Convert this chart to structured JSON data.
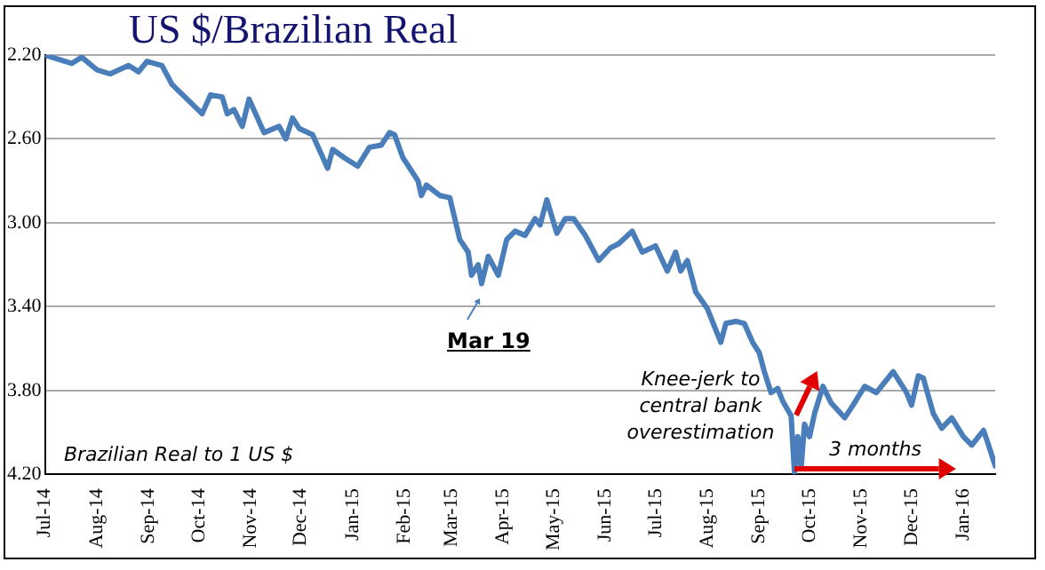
{
  "chart_data": {
    "type": "line",
    "title": "US $/Brazilian Real",
    "x": [
      "2014-07-01",
      "2014-07-17",
      "2014-07-23",
      "2014-08-01",
      "2014-08-09",
      "2014-08-20",
      "2014-08-26",
      "2014-08-31",
      "2014-09-09",
      "2014-09-15",
      "2014-09-24",
      "2014-10-03",
      "2014-10-08",
      "2014-10-15",
      "2014-10-18",
      "2014-10-22",
      "2014-10-27",
      "2014-10-31",
      "2014-11-09",
      "2014-11-18",
      "2014-11-22",
      "2014-11-26",
      "2014-11-30",
      "2014-12-08",
      "2014-12-17",
      "2014-12-20",
      "2014-12-27",
      "2015-01-04",
      "2015-01-11",
      "2015-01-18",
      "2015-01-23",
      "2015-01-26",
      "2015-01-31",
      "2015-02-09",
      "2015-02-11",
      "2015-02-14",
      "2015-02-22",
      "2015-02-28",
      "2015-03-06",
      "2015-03-11",
      "2015-03-13",
      "2015-03-17",
      "2015-03-19",
      "2015-03-23",
      "2015-03-29",
      "2015-04-03",
      "2015-04-08",
      "2015-04-14",
      "2015-04-20",
      "2015-04-23",
      "2015-04-27",
      "2015-05-03",
      "2015-05-08",
      "2015-05-13",
      "2015-05-20",
      "2015-05-28",
      "2015-06-04",
      "2015-06-09",
      "2015-06-17",
      "2015-06-23",
      "2015-07-01",
      "2015-07-08",
      "2015-07-13",
      "2015-07-16",
      "2015-07-20",
      "2015-07-25",
      "2015-08-01",
      "2015-08-09",
      "2015-08-12",
      "2015-08-18",
      "2015-08-23",
      "2015-08-28",
      "2015-09-01",
      "2015-09-04",
      "2015-09-08",
      "2015-09-12",
      "2015-09-15",
      "2015-09-20",
      "2015-09-22",
      "2015-09-24",
      "2015-09-26",
      "2015-09-28",
      "2015-10-01",
      "2015-10-04",
      "2015-10-09",
      "2015-10-14",
      "2015-10-22",
      "2015-10-27",
      "2015-11-03",
      "2015-11-10",
      "2015-11-20",
      "2015-11-28",
      "2015-12-01",
      "2015-12-05",
      "2015-12-08",
      "2015-12-14",
      "2015-12-19",
      "2015-12-25",
      "2016-01-01",
      "2016-01-06",
      "2016-01-13",
      "2016-01-16",
      "2016-01-20"
    ],
    "series": [
      {
        "color": "#4a7ebb",
        "values": [
          2.2,
          2.24,
          2.21,
          2.27,
          2.29,
          2.25,
          2.28,
          2.23,
          2.25,
          2.34,
          2.41,
          2.48,
          2.39,
          2.4,
          2.48,
          2.46,
          2.54,
          2.41,
          2.57,
          2.54,
          2.6,
          2.5,
          2.55,
          2.58,
          2.74,
          2.65,
          2.69,
          2.73,
          2.64,
          2.63,
          2.57,
          2.58,
          2.69,
          2.8,
          2.87,
          2.82,
          2.87,
          2.88,
          3.08,
          3.14,
          3.25,
          3.2,
          3.29,
          3.16,
          3.25,
          3.08,
          3.04,
          3.06,
          2.98,
          3.01,
          2.89,
          3.05,
          2.98,
          2.98,
          3.06,
          3.18,
          3.12,
          3.1,
          3.04,
          3.14,
          3.11,
          3.23,
          3.14,
          3.23,
          3.18,
          3.33,
          3.41,
          3.57,
          3.48,
          3.47,
          3.48,
          3.57,
          3.62,
          3.71,
          3.81,
          3.79,
          3.85,
          3.92,
          4.19,
          4.02,
          4.17,
          3.96,
          4.02,
          3.91,
          3.78,
          3.86,
          3.93,
          3.87,
          3.78,
          3.81,
          3.71,
          3.81,
          3.87,
          3.73,
          3.74,
          3.91,
          3.98,
          3.93,
          4.02,
          4.06,
          3.99,
          4.06,
          4.16
        ]
      }
    ],
    "xlim": [
      "2014-07-01",
      "2016-01-20"
    ],
    "xticks": [
      {
        "value": "2014-07-01",
        "label": "Jul-14"
      },
      {
        "value": "2014-08-01",
        "label": "Aug-14"
      },
      {
        "value": "2014-09-01",
        "label": "Sep-14"
      },
      {
        "value": "2014-10-01",
        "label": "Oct-14"
      },
      {
        "value": "2014-11-01",
        "label": "Nov-14"
      },
      {
        "value": "2014-12-01",
        "label": "Dec-14"
      },
      {
        "value": "2015-01-01",
        "label": "Jan-15"
      },
      {
        "value": "2015-02-01",
        "label": "Feb-15"
      },
      {
        "value": "2015-03-01",
        "label": "Mar-15"
      },
      {
        "value": "2015-04-01",
        "label": "Apr-15"
      },
      {
        "value": "2015-05-01",
        "label": "May-15"
      },
      {
        "value": "2015-06-01",
        "label": "Jun-15"
      },
      {
        "value": "2015-07-01",
        "label": "Jul-15"
      },
      {
        "value": "2015-08-01",
        "label": "Aug-15"
      },
      {
        "value": "2015-09-01",
        "label": "Sep-15"
      },
      {
        "value": "2015-10-01",
        "label": "Oct-15"
      },
      {
        "value": "2015-11-01",
        "label": "Nov-15"
      },
      {
        "value": "2015-12-01",
        "label": "Dec-15"
      },
      {
        "value": "2016-01-01",
        "label": "Jan-16"
      }
    ],
    "ylim": [
      4.2,
      2.2
    ],
    "yticks": [
      {
        "value": 2.2,
        "label": "2.20"
      },
      {
        "value": 2.6,
        "label": "2.60"
      },
      {
        "value": 3.0,
        "label": "3.00"
      },
      {
        "value": 3.4,
        "label": "3.40"
      },
      {
        "value": 3.8,
        "label": "3.80"
      },
      {
        "value": 4.2,
        "label": "4.20"
      }
    ],
    "annotations": [
      {
        "text": "Mar 19",
        "x": "2015-03-19",
        "y": 3.29
      },
      "Knee-jerk to central bank overestimation",
      {
        "text": "3 months",
        "x": "2015-09-22",
        "y": 4.17
      },
      "Brazilian Real to 1 US $"
    ],
    "grid": "y",
    "legend": false,
    "marker": "none",
    "line_style": "solid"
  }
}
